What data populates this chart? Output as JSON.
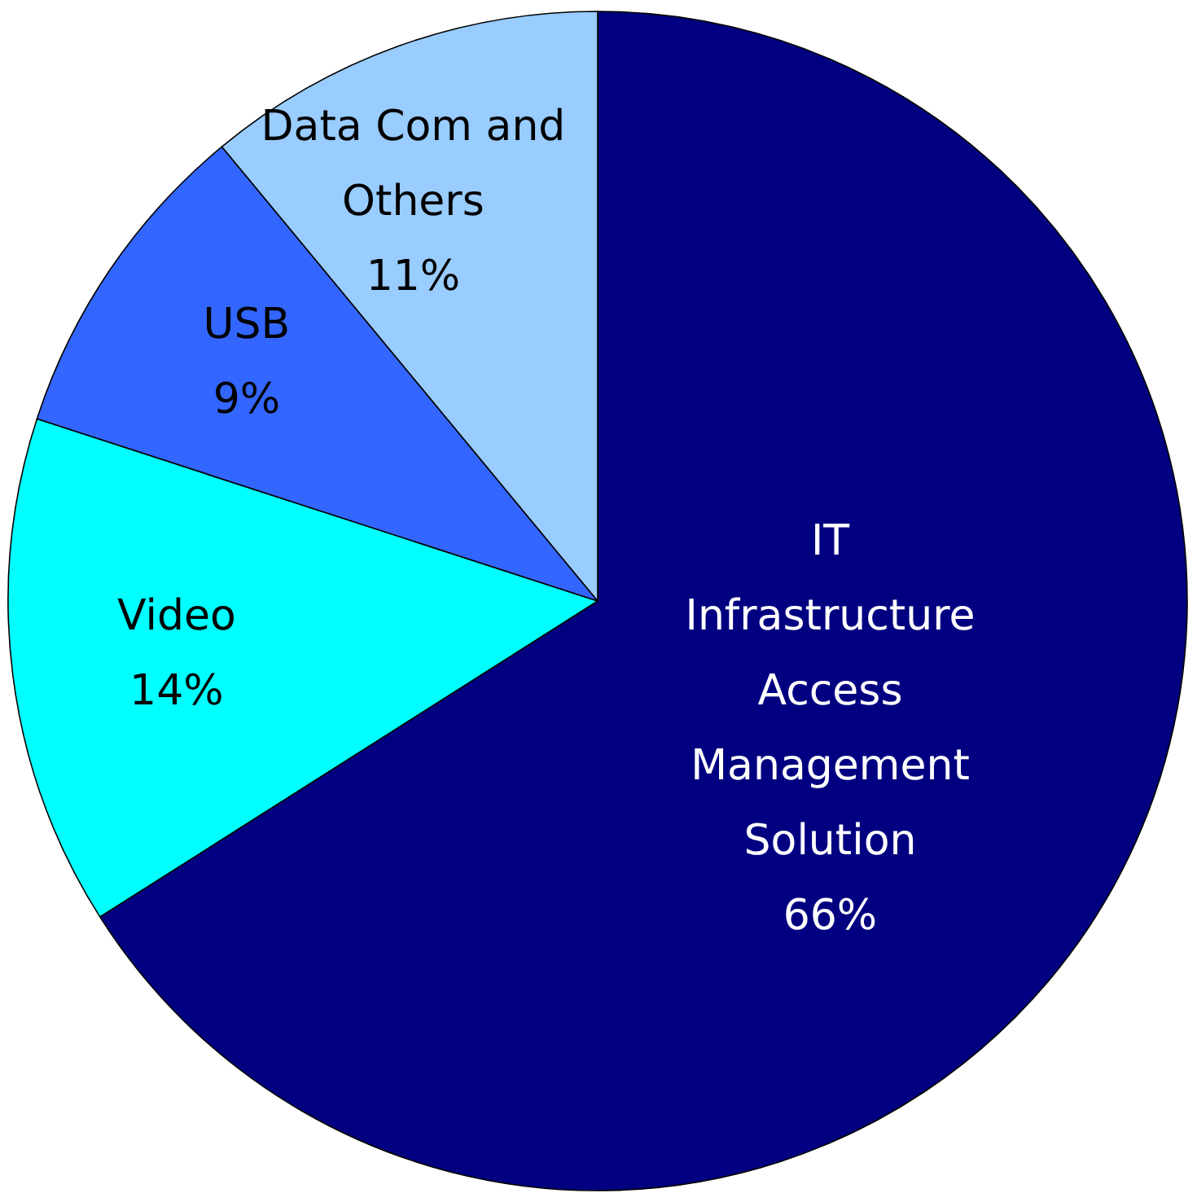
{
  "chart_data": {
    "type": "pie",
    "categories": [
      "IT Infrastructure Access Management Solution",
      "Video",
      "USB",
      "Data Com and Others"
    ],
    "values": [
      66,
      14,
      9,
      11
    ],
    "colors": [
      "#000080",
      "#00ffff",
      "#3366ff",
      "#99ccff"
    ],
    "value_labels": [
      "66%",
      "14%",
      "9%",
      "11%"
    ]
  }
}
